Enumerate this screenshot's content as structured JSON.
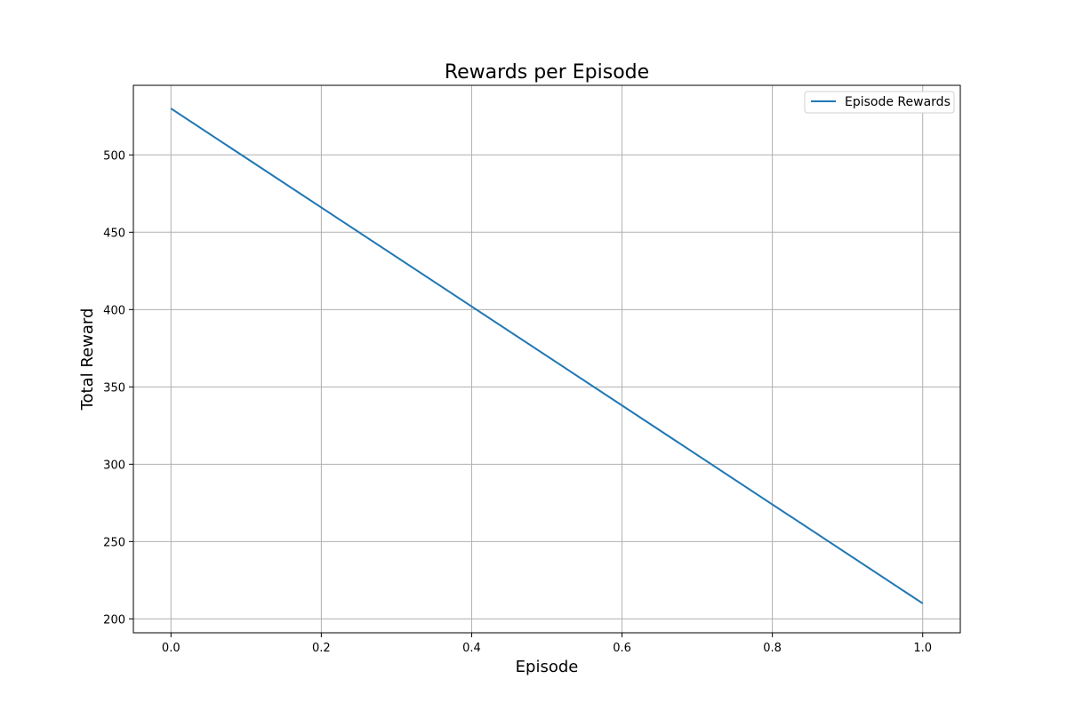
{
  "chart_data": {
    "type": "line",
    "title": "Rewards per Episode",
    "xlabel": "Episode",
    "ylabel": "Total Reward",
    "xlim": [
      -0.05,
      1.05
    ],
    "ylim": [
      191,
      545
    ],
    "xticks": [
      0.0,
      0.2,
      0.4,
      0.6,
      0.8,
      1.0
    ],
    "xtick_labels": [
      "0.0",
      "0.2",
      "0.4",
      "0.6",
      "0.8",
      "1.0"
    ],
    "yticks": [
      200,
      250,
      300,
      350,
      400,
      450,
      500
    ],
    "ytick_labels": [
      "200",
      "250",
      "300",
      "350",
      "400",
      "450",
      "500"
    ],
    "grid": true,
    "legend_position": "top-right",
    "series": [
      {
        "name": "Episode Rewards",
        "color": "#1f77b4",
        "x": [
          0.0,
          1.0
        ],
        "y": [
          530,
          210
        ]
      }
    ]
  }
}
